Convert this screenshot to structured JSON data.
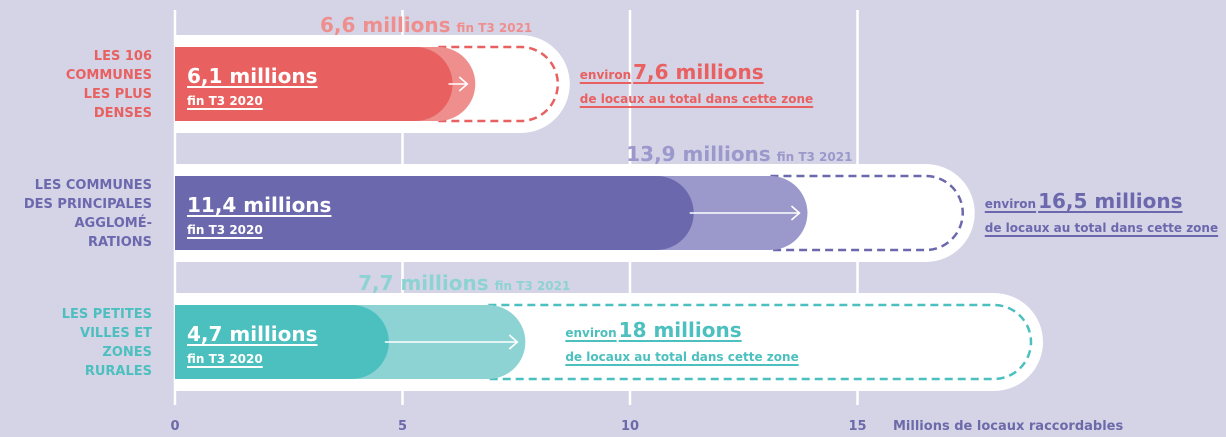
{
  "chart_data": {
    "type": "bar",
    "xlabel": "Millions de locaux raccordables",
    "xlim": [
      0,
      15
    ],
    "x_ticks": [
      "0",
      "5",
      "10",
      "15"
    ],
    "categories": [
      {
        "label_lines": [
          "LES 106",
          "COMMUNES",
          "LES PLUS",
          "DENSES"
        ],
        "color": "#e8605f",
        "light_color": "#ee8f8e",
        "text_color": "#e8605f",
        "value_2020": 6.1,
        "label_2020": "6,1 millions",
        "sub_2020": "fin T3 2020",
        "value_2021": 6.6,
        "label_2021": "6,6 millions",
        "sub_2021": "fin T3 2021",
        "total": 7.6,
        "total_prefix": "environ",
        "total_label": "7,6 millions",
        "total_sub": "de locaux au total dans cette zone"
      },
      {
        "label_lines": [
          "LES COMMUNES",
          "DES PRINCIPALES",
          "AGGLOMÉ-",
          "RATIONS"
        ],
        "color": "#6b68ad",
        "light_color": "#9b98cb",
        "text_color": "#6b68ad",
        "value_2020": 11.4,
        "label_2020": "11,4 millions",
        "sub_2020": "fin T3 2020",
        "value_2021": 13.9,
        "label_2021": "13,9 millions",
        "sub_2021": "fin T3 2021",
        "total": 16.5,
        "total_prefix": "environ",
        "total_label": "16,5 millions",
        "total_sub": "de locaux au total dans cette zone"
      },
      {
        "label_lines": [
          "LES PETITES",
          "VILLES ET",
          "ZONES",
          "RURALES"
        ],
        "color": "#4cbfbf",
        "light_color": "#8dd3d3",
        "text_color": "#4cbfbf",
        "value_2020": 4.7,
        "label_2020": "4,7 millions",
        "sub_2020": "fin T3 2020",
        "value_2021": 7.7,
        "label_2021": "7,7 millions",
        "sub_2021": "fin T3 2021",
        "total": 18,
        "total_prefix": "environ",
        "total_label": "18 millions",
        "total_sub": "de locaux au total dans cette zone"
      }
    ]
  }
}
